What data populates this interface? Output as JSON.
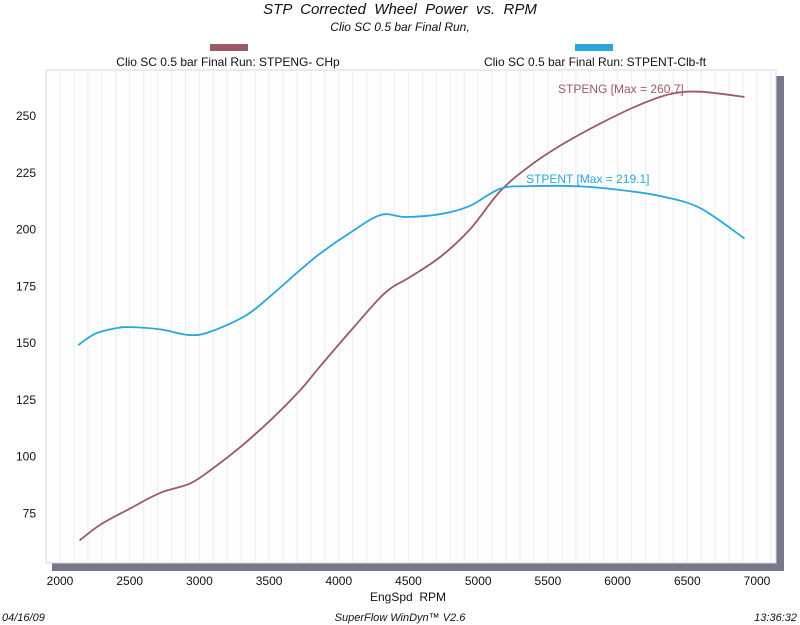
{
  "chart_data": {
    "type": "line",
    "title": "STP  Corrected  Wheel  Power  vs.  RPM",
    "subtitle": "Clio SC 0.5 bar Final Run,",
    "xlabel": "EngSpd  RPM",
    "ylabel": "",
    "xlim": [
      2000,
      7000
    ],
    "ylim": [
      55,
      270
    ],
    "x_ticks": [
      2000,
      2500,
      3000,
      3500,
      4000,
      4500,
      5000,
      5500,
      6000,
      6500,
      7000
    ],
    "y_ticks": [
      75,
      100,
      125,
      150,
      175,
      200,
      225,
      250
    ],
    "grid": "vertical",
    "legend_placement": "top",
    "series": [
      {
        "name": "Clio SC 0.5 bar Final Run: STPENG- CHp",
        "color": "#9b5a63",
        "annotation": "STPENG [Max = 260.7]",
        "points": [
          [
            2140,
            63
          ],
          [
            2290,
            70
          ],
          [
            2500,
            77
          ],
          [
            2720,
            84
          ],
          [
            2930,
            88
          ],
          [
            3080,
            94
          ],
          [
            3290,
            104
          ],
          [
            3510,
            116
          ],
          [
            3720,
            129
          ],
          [
            3870,
            140
          ],
          [
            4080,
            155
          ],
          [
            4330,
            172
          ],
          [
            4510,
            179
          ],
          [
            4730,
            188
          ],
          [
            4940,
            200
          ],
          [
            5160,
            217
          ],
          [
            5370,
            228
          ],
          [
            5590,
            237
          ],
          [
            5870,
            246.5
          ],
          [
            6160,
            255
          ],
          [
            6380,
            259.7
          ],
          [
            6590,
            260.7
          ],
          [
            6910,
            258.4
          ]
        ]
      },
      {
        "name": "Clio SC 0.5 bar Final Run: STPENT-Clb-ft",
        "color": "#2aa6de",
        "annotation": "STPENT [Max = 219.1]",
        "points": [
          [
            2130,
            149
          ],
          [
            2250,
            154
          ],
          [
            2400,
            156.5
          ],
          [
            2500,
            157
          ],
          [
            2720,
            156
          ],
          [
            2930,
            153.5
          ],
          [
            3080,
            155
          ],
          [
            3330,
            162
          ],
          [
            3510,
            170.7
          ],
          [
            3720,
            182
          ],
          [
            3870,
            189.6
          ],
          [
            4080,
            198.5
          ],
          [
            4300,
            206.4
          ],
          [
            4480,
            205.5
          ],
          [
            4730,
            206.8
          ],
          [
            4940,
            210.4
          ],
          [
            5160,
            218
          ],
          [
            5370,
            219.1
          ],
          [
            5730,
            219
          ],
          [
            6020,
            217.4
          ],
          [
            6300,
            214.8
          ],
          [
            6590,
            209.5
          ],
          [
            6910,
            196
          ]
        ]
      }
    ]
  },
  "footer": {
    "date": "04/16/09",
    "software": "SuperFlow WinDyn™ V2.6",
    "time": "13:36:32"
  }
}
